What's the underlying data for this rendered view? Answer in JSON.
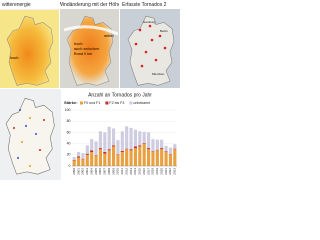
{
  "panels": [
    {
      "title": "witterenergie",
      "labels": [
        "hoch"
      ]
    },
    {
      "title": "Windänderung mit der Höhe",
      "labels": [
        "hoch",
        "auch zwischen",
        "Rund 6 km",
        "mittel"
      ]
    },
    {
      "title": "Erfasste Tornados 2",
      "labels": [
        "Hamburg",
        "Berlin",
        "München"
      ]
    }
  ],
  "chart_data": {
    "type": "bar",
    "stacked": true,
    "title": "Anzahl an Tornados pro Jahr",
    "legend_title": "Stärke:",
    "categories": [
      "2000",
      "2001",
      "2002",
      "2003",
      "2004",
      "2005",
      "2006",
      "2007",
      "2008",
      "2009",
      "2010",
      "2011",
      "2012",
      "2013",
      "2014",
      "2015",
      "2016",
      "2017",
      "2018",
      "2019",
      "2020",
      "2021",
      "2022",
      "2023"
    ],
    "series": [
      {
        "name": "F0 und F1",
        "color": "#e8a040",
        "values": [
          10,
          15,
          12,
          20,
          25,
          18,
          30,
          22,
          28,
          35,
          20,
          25,
          30,
          28,
          32,
          35,
          40,
          30,
          25,
          28,
          30,
          25,
          20,
          30
        ]
      },
      {
        "name": "F2 bis F3",
        "color": "#c03030",
        "values": [
          1,
          2,
          1,
          2,
          3,
          1,
          2,
          3,
          2,
          2,
          1,
          2,
          1,
          2,
          3,
          2,
          1,
          2,
          1,
          1,
          2,
          1,
          1,
          1
        ]
      },
      {
        "name": "unbekannt",
        "color": "#cfcbe0",
        "values": [
          5,
          8,
          10,
          15,
          20,
          25,
          30,
          35,
          40,
          30,
          25,
          35,
          40,
          38,
          30,
          25,
          20,
          28,
          22,
          18,
          15,
          10,
          12,
          8
        ]
      }
    ],
    "ylim": [
      0,
      100
    ],
    "yticks": [
      0,
      20,
      40,
      60,
      80,
      100
    ],
    "grid": true
  }
}
